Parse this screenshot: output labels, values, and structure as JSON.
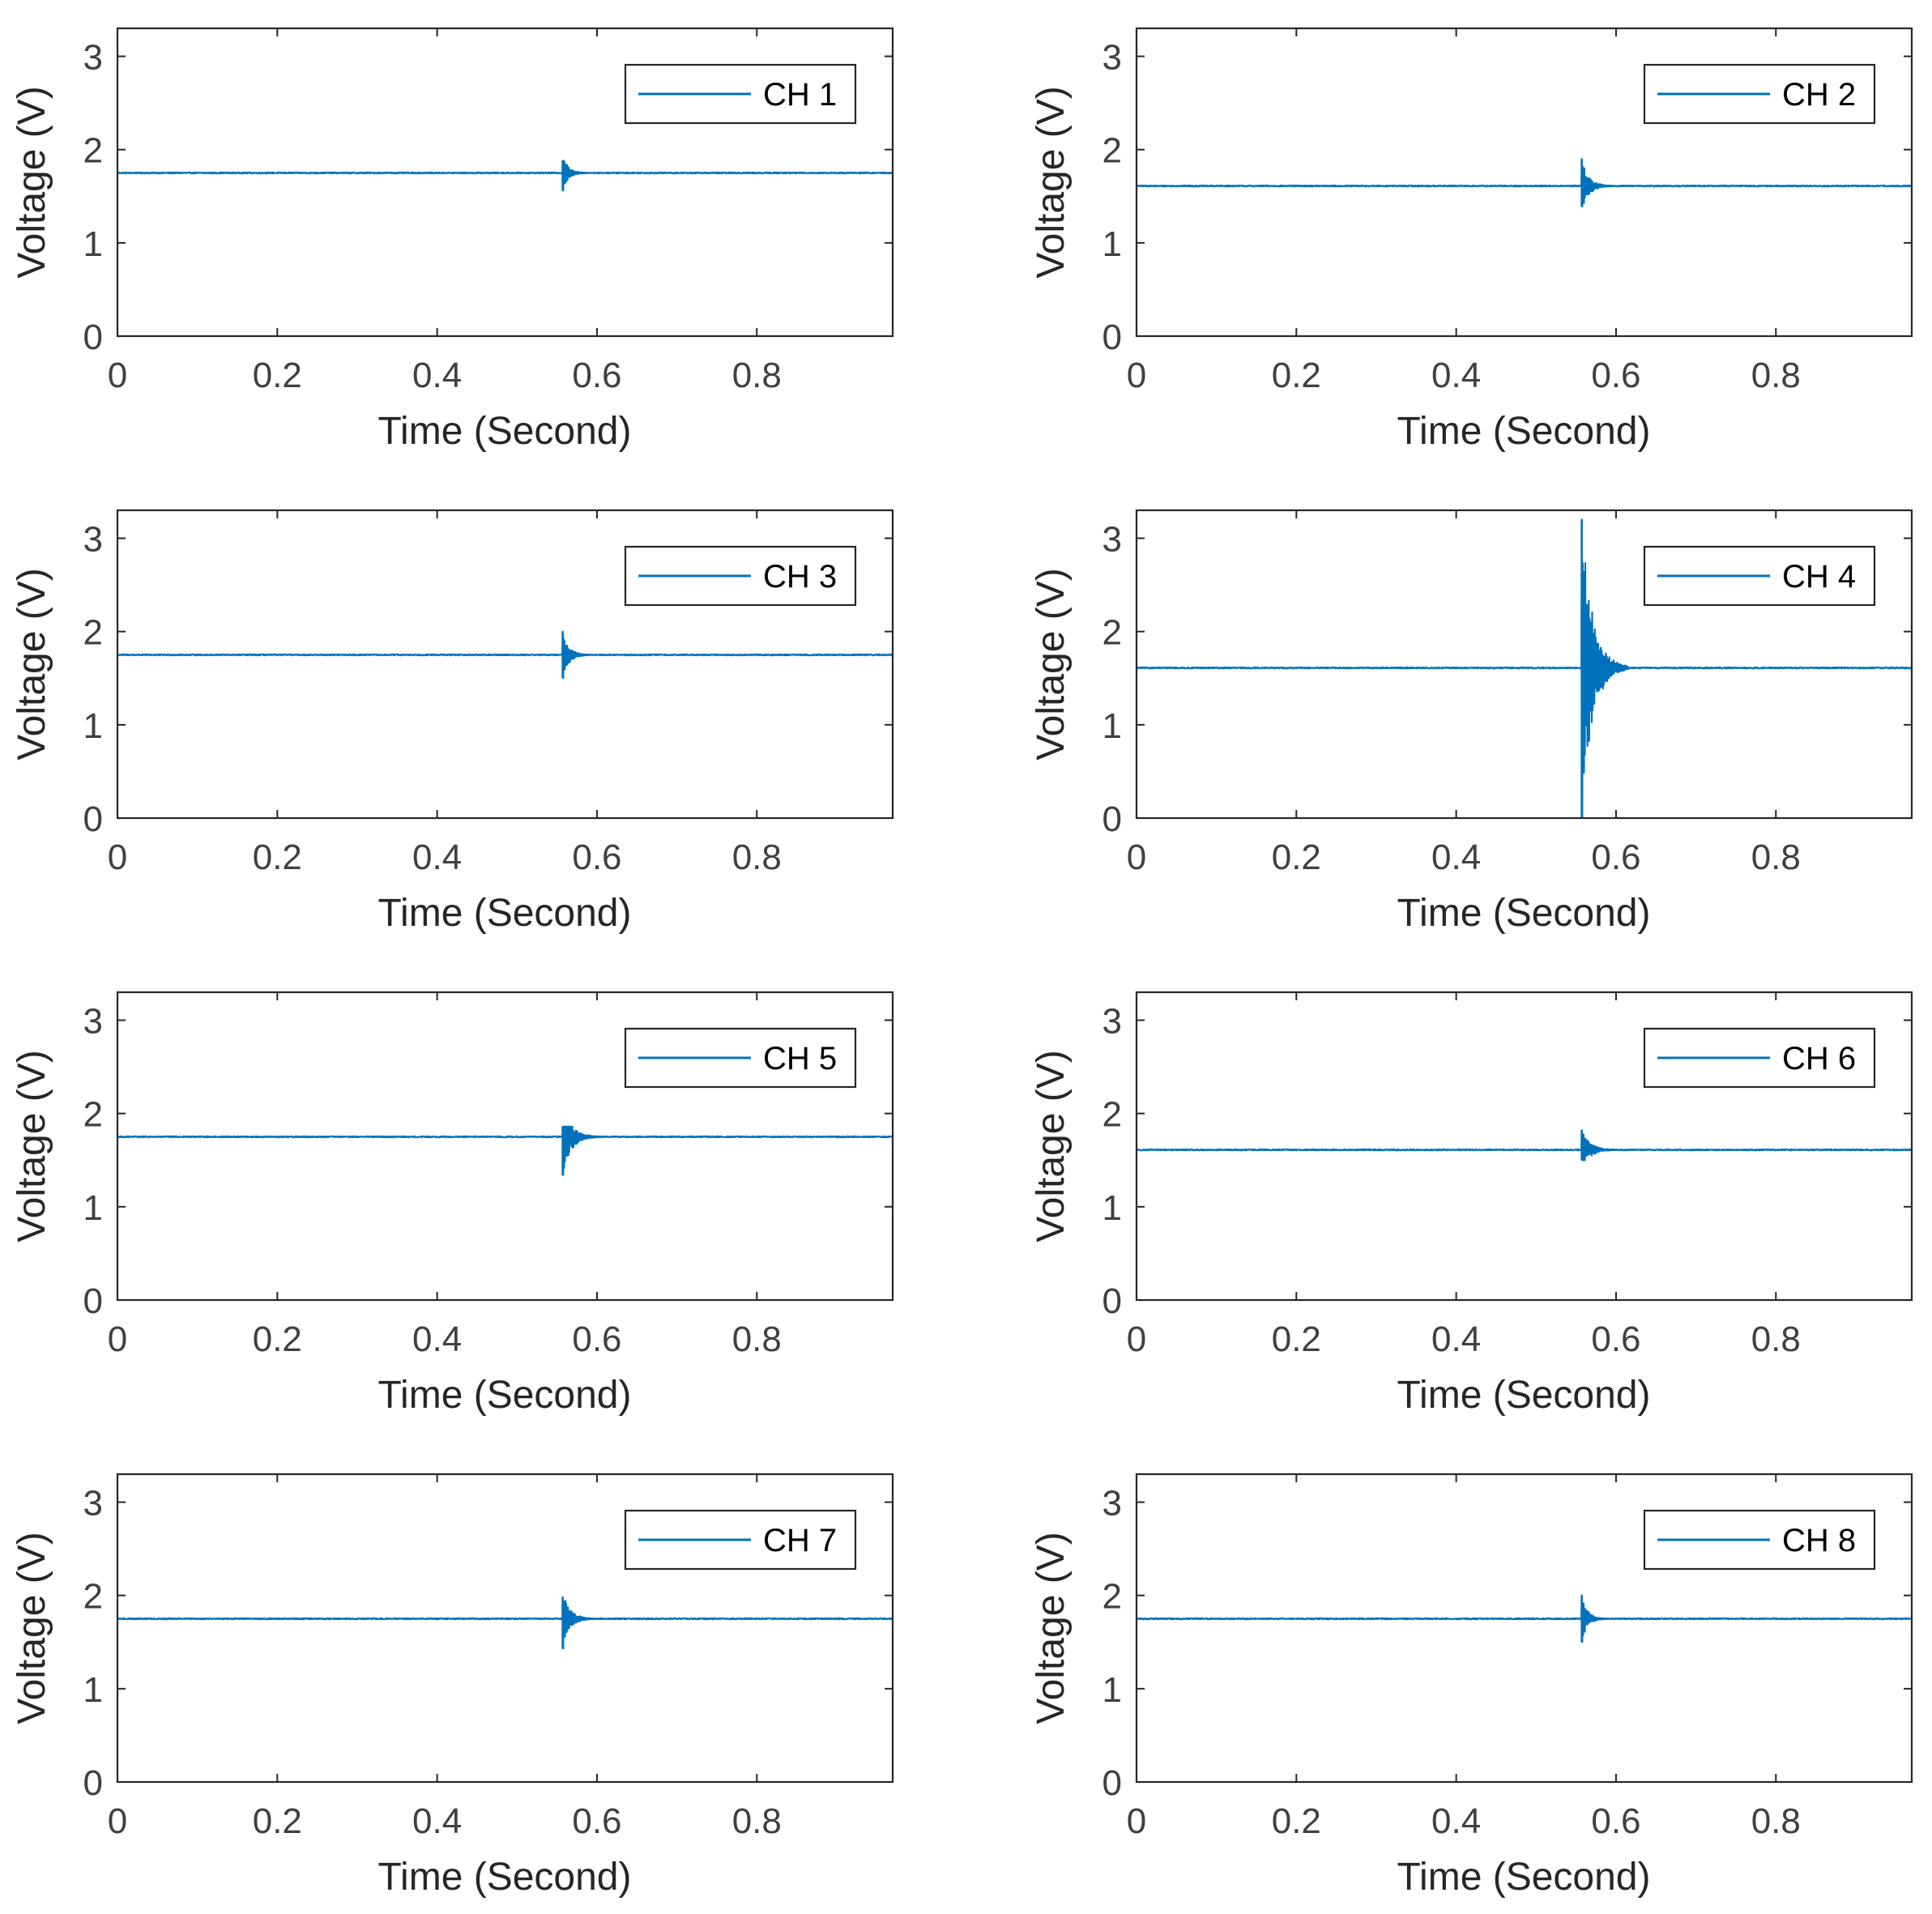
{
  "figure": {
    "line_color": "#0072BD",
    "axis_color": "#262626"
  },
  "chart_data": [
    {
      "type": "line",
      "channel": "CH 1",
      "legend": "CH 1",
      "xlabel": "Time (Second)",
      "ylabel": "Voltage (V)",
      "xlim": [
        0,
        0.97
      ],
      "ylim": [
        0,
        3.3
      ],
      "xticks": [
        0,
        0.2,
        0.4,
        0.6,
        0.8
      ],
      "xtick_labels": [
        "0",
        "0.2",
        "0.4",
        "0.6",
        "0.8"
      ],
      "yticks": [
        0,
        1,
        2,
        3
      ],
      "ytick_labels": [
        "0",
        "1",
        "2",
        "3"
      ],
      "baseline_voltage": 1.75,
      "transient": {
        "start_time": 0.557,
        "settle_time": 0.58,
        "max_voltage": 1.88,
        "min_voltage": 1.56
      },
      "legend_position": "top-right"
    },
    {
      "type": "line",
      "channel": "CH 2",
      "legend": "CH 2",
      "xlabel": "Time (Second)",
      "ylabel": "Voltage (V)",
      "xlim": [
        0,
        0.97
      ],
      "ylim": [
        0,
        3.3
      ],
      "xticks": [
        0,
        0.2,
        0.4,
        0.6,
        0.8
      ],
      "xtick_labels": [
        "0",
        "0.2",
        "0.4",
        "0.6",
        "0.8"
      ],
      "yticks": [
        0,
        1,
        2,
        3
      ],
      "ytick_labels": [
        "0",
        "1",
        "2",
        "3"
      ],
      "baseline_voltage": 1.61,
      "transient": {
        "start_time": 0.557,
        "settle_time": 0.585,
        "max_voltage": 1.9,
        "min_voltage": 1.39
      },
      "legend_position": "top-right"
    },
    {
      "type": "line",
      "channel": "CH 3",
      "legend": "CH 3",
      "xlabel": "Time (Second)",
      "ylabel": "Voltage (V)",
      "xlim": [
        0,
        0.97
      ],
      "ylim": [
        0,
        3.3
      ],
      "xticks": [
        0,
        0.2,
        0.4,
        0.6,
        0.8
      ],
      "xtick_labels": [
        "0",
        "0.2",
        "0.4",
        "0.6",
        "0.8"
      ],
      "yticks": [
        0,
        1,
        2,
        3
      ],
      "ytick_labels": [
        "0",
        "1",
        "2",
        "3"
      ],
      "baseline_voltage": 1.75,
      "transient": {
        "start_time": 0.557,
        "settle_time": 0.582,
        "max_voltage": 2.0,
        "min_voltage": 1.5
      },
      "legend_position": "top-right"
    },
    {
      "type": "line",
      "channel": "CH 4",
      "legend": "CH 4",
      "xlabel": "Time (Second)",
      "ylabel": "Voltage (V)",
      "xlim": [
        0,
        0.97
      ],
      "ylim": [
        0,
        3.3
      ],
      "xticks": [
        0,
        0.2,
        0.4,
        0.6,
        0.8
      ],
      "xtick_labels": [
        "0",
        "0.2",
        "0.4",
        "0.6",
        "0.8"
      ],
      "yticks": [
        0,
        1,
        2,
        3
      ],
      "ytick_labels": [
        "0",
        "1",
        "2",
        "3"
      ],
      "baseline_voltage": 1.61,
      "transient": {
        "start_time": 0.557,
        "settle_time": 0.6,
        "max_voltage": 3.2,
        "min_voltage": 0.0
      },
      "legend_position": "top-right"
    },
    {
      "type": "line",
      "channel": "CH 5",
      "legend": "CH 5",
      "xlabel": "Time (Second)",
      "ylabel": "Voltage (V)",
      "xlim": [
        0,
        0.97
      ],
      "ylim": [
        0,
        3.3
      ],
      "xticks": [
        0,
        0.2,
        0.4,
        0.6,
        0.8
      ],
      "xtick_labels": [
        "0",
        "0.2",
        "0.4",
        "0.6",
        "0.8"
      ],
      "yticks": [
        0,
        1,
        2,
        3
      ],
      "ytick_labels": [
        "0",
        "1",
        "2",
        "3"
      ],
      "baseline_voltage": 1.75,
      "transient": {
        "start_time": 0.557,
        "settle_time": 0.59,
        "max_voltage": 1.86,
        "min_voltage": 1.34
      },
      "legend_position": "top-right"
    },
    {
      "type": "line",
      "channel": "CH 6",
      "legend": "CH 6",
      "xlabel": "Time (Second)",
      "ylabel": "Voltage (V)",
      "xlim": [
        0,
        0.97
      ],
      "ylim": [
        0,
        3.3
      ],
      "xticks": [
        0,
        0.2,
        0.4,
        0.6,
        0.8
      ],
      "xtick_labels": [
        "0",
        "0.2",
        "0.4",
        "0.6",
        "0.8"
      ],
      "yticks": [
        0,
        1,
        2,
        3
      ],
      "ytick_labels": [
        "0",
        "1",
        "2",
        "3"
      ],
      "baseline_voltage": 1.61,
      "transient": {
        "start_time": 0.557,
        "settle_time": 0.59,
        "max_voltage": 1.82,
        "min_voltage": 1.5
      },
      "legend_position": "top-right"
    },
    {
      "type": "line",
      "channel": "CH 7",
      "legend": "CH 7",
      "xlabel": "Time (Second)",
      "ylabel": "Voltage (V)",
      "xlim": [
        0,
        0.97
      ],
      "ylim": [
        0,
        3.3
      ],
      "xticks": [
        0,
        0.2,
        0.4,
        0.6,
        0.8
      ],
      "xtick_labels": [
        "0",
        "0.2",
        "0.4",
        "0.6",
        "0.8"
      ],
      "yticks": [
        0,
        1,
        2,
        3
      ],
      "ytick_labels": [
        "0",
        "1",
        "2",
        "3"
      ],
      "baseline_voltage": 1.75,
      "transient": {
        "start_time": 0.557,
        "settle_time": 0.585,
        "max_voltage": 1.98,
        "min_voltage": 1.43
      },
      "legend_position": "top-right"
    },
    {
      "type": "line",
      "channel": "CH 8",
      "legend": "CH 8",
      "xlabel": "Time (Second)",
      "ylabel": "Voltage (V)",
      "xlim": [
        0,
        0.97
      ],
      "ylim": [
        0,
        3.3
      ],
      "xticks": [
        0,
        0.2,
        0.4,
        0.6,
        0.8
      ],
      "xtick_labels": [
        "0",
        "0.2",
        "0.4",
        "0.6",
        "0.8"
      ],
      "yticks": [
        0,
        1,
        2,
        3
      ],
      "ytick_labels": [
        "0",
        "1",
        "2",
        "3"
      ],
      "baseline_voltage": 1.75,
      "transient": {
        "start_time": 0.557,
        "settle_time": 0.58,
        "max_voltage": 2.0,
        "min_voltage": 1.5
      },
      "legend_position": "top-right"
    }
  ]
}
